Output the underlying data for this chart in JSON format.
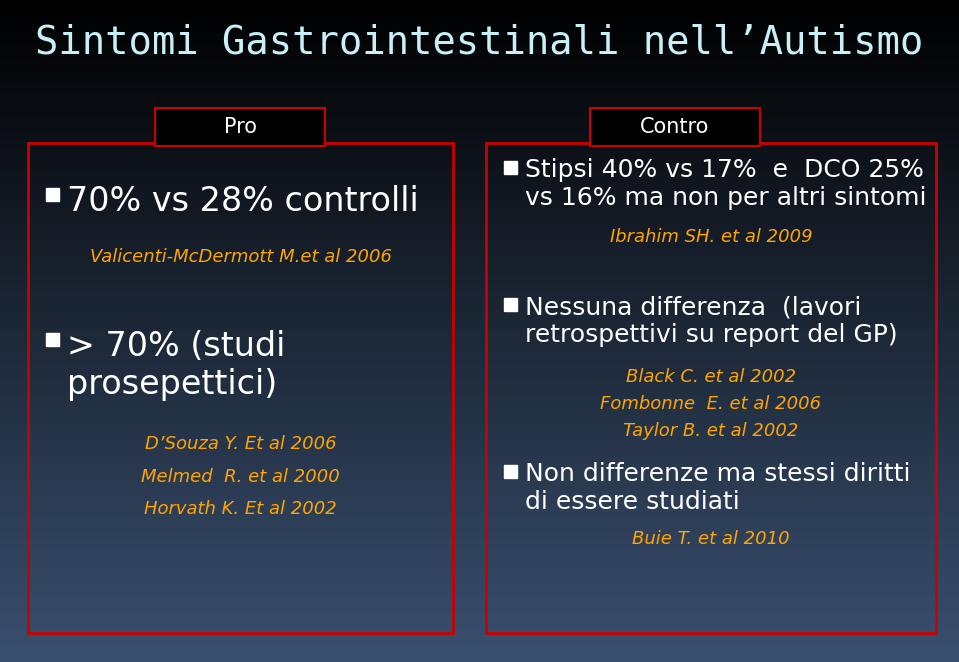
{
  "title": "Sintomi Gastrointestinali nell’Autismo",
  "title_color": "#c8f0f8",
  "pro_label": "Pro",
  "contro_label": "Contro",
  "white_color": "#FFFFFF",
  "yellow_color": "#FFA500",
  "box_border_color": "#CC0000",
  "label_text_color": "#FFFFFF",
  "pro_items": [
    {
      "text": "70% vs 28% controlli",
      "type": "bullet",
      "size": 24
    },
    {
      "text": "Valicenti-McDermott M.et al 2006",
      "type": "ref",
      "size": 13
    },
    {
      "text": "> 70% (studi\nprosepettici)",
      "type": "bullet",
      "size": 24
    },
    {
      "text": "D’Souza Y. Et al 2006",
      "type": "ref",
      "size": 13
    },
    {
      "text": "Melmed  R. et al 2000",
      "type": "ref",
      "size": 13
    },
    {
      "text": "Horvath K. Et al 2002",
      "type": "ref",
      "size": 13
    }
  ],
  "contro_items": [
    {
      "text": "Stipsi 40% vs 17%  e  DCO 25%\nvs 16% ma non per altri sintomi",
      "type": "bullet",
      "size": 18
    },
    {
      "text": "Ibrahim SH. et al 2009",
      "type": "ref",
      "size": 13
    },
    {
      "text": "Nessuna differenza  (lavori\nretrospettivi su report del GP)",
      "type": "bullet",
      "size": 18
    },
    {
      "text": "Black C. et al 2002",
      "type": "ref",
      "size": 13
    },
    {
      "text": "Fombonne  E. et al 2006",
      "type": "ref",
      "size": 13
    },
    {
      "text": "Taylor B. et al 2002",
      "type": "ref",
      "size": 13
    },
    {
      "text": "Non differenze ma stessi diritti\ndi essere studiati",
      "type": "bullet",
      "size": 18
    },
    {
      "text": "Buie T. et al 2010",
      "type": "ref",
      "size": 13
    }
  ]
}
